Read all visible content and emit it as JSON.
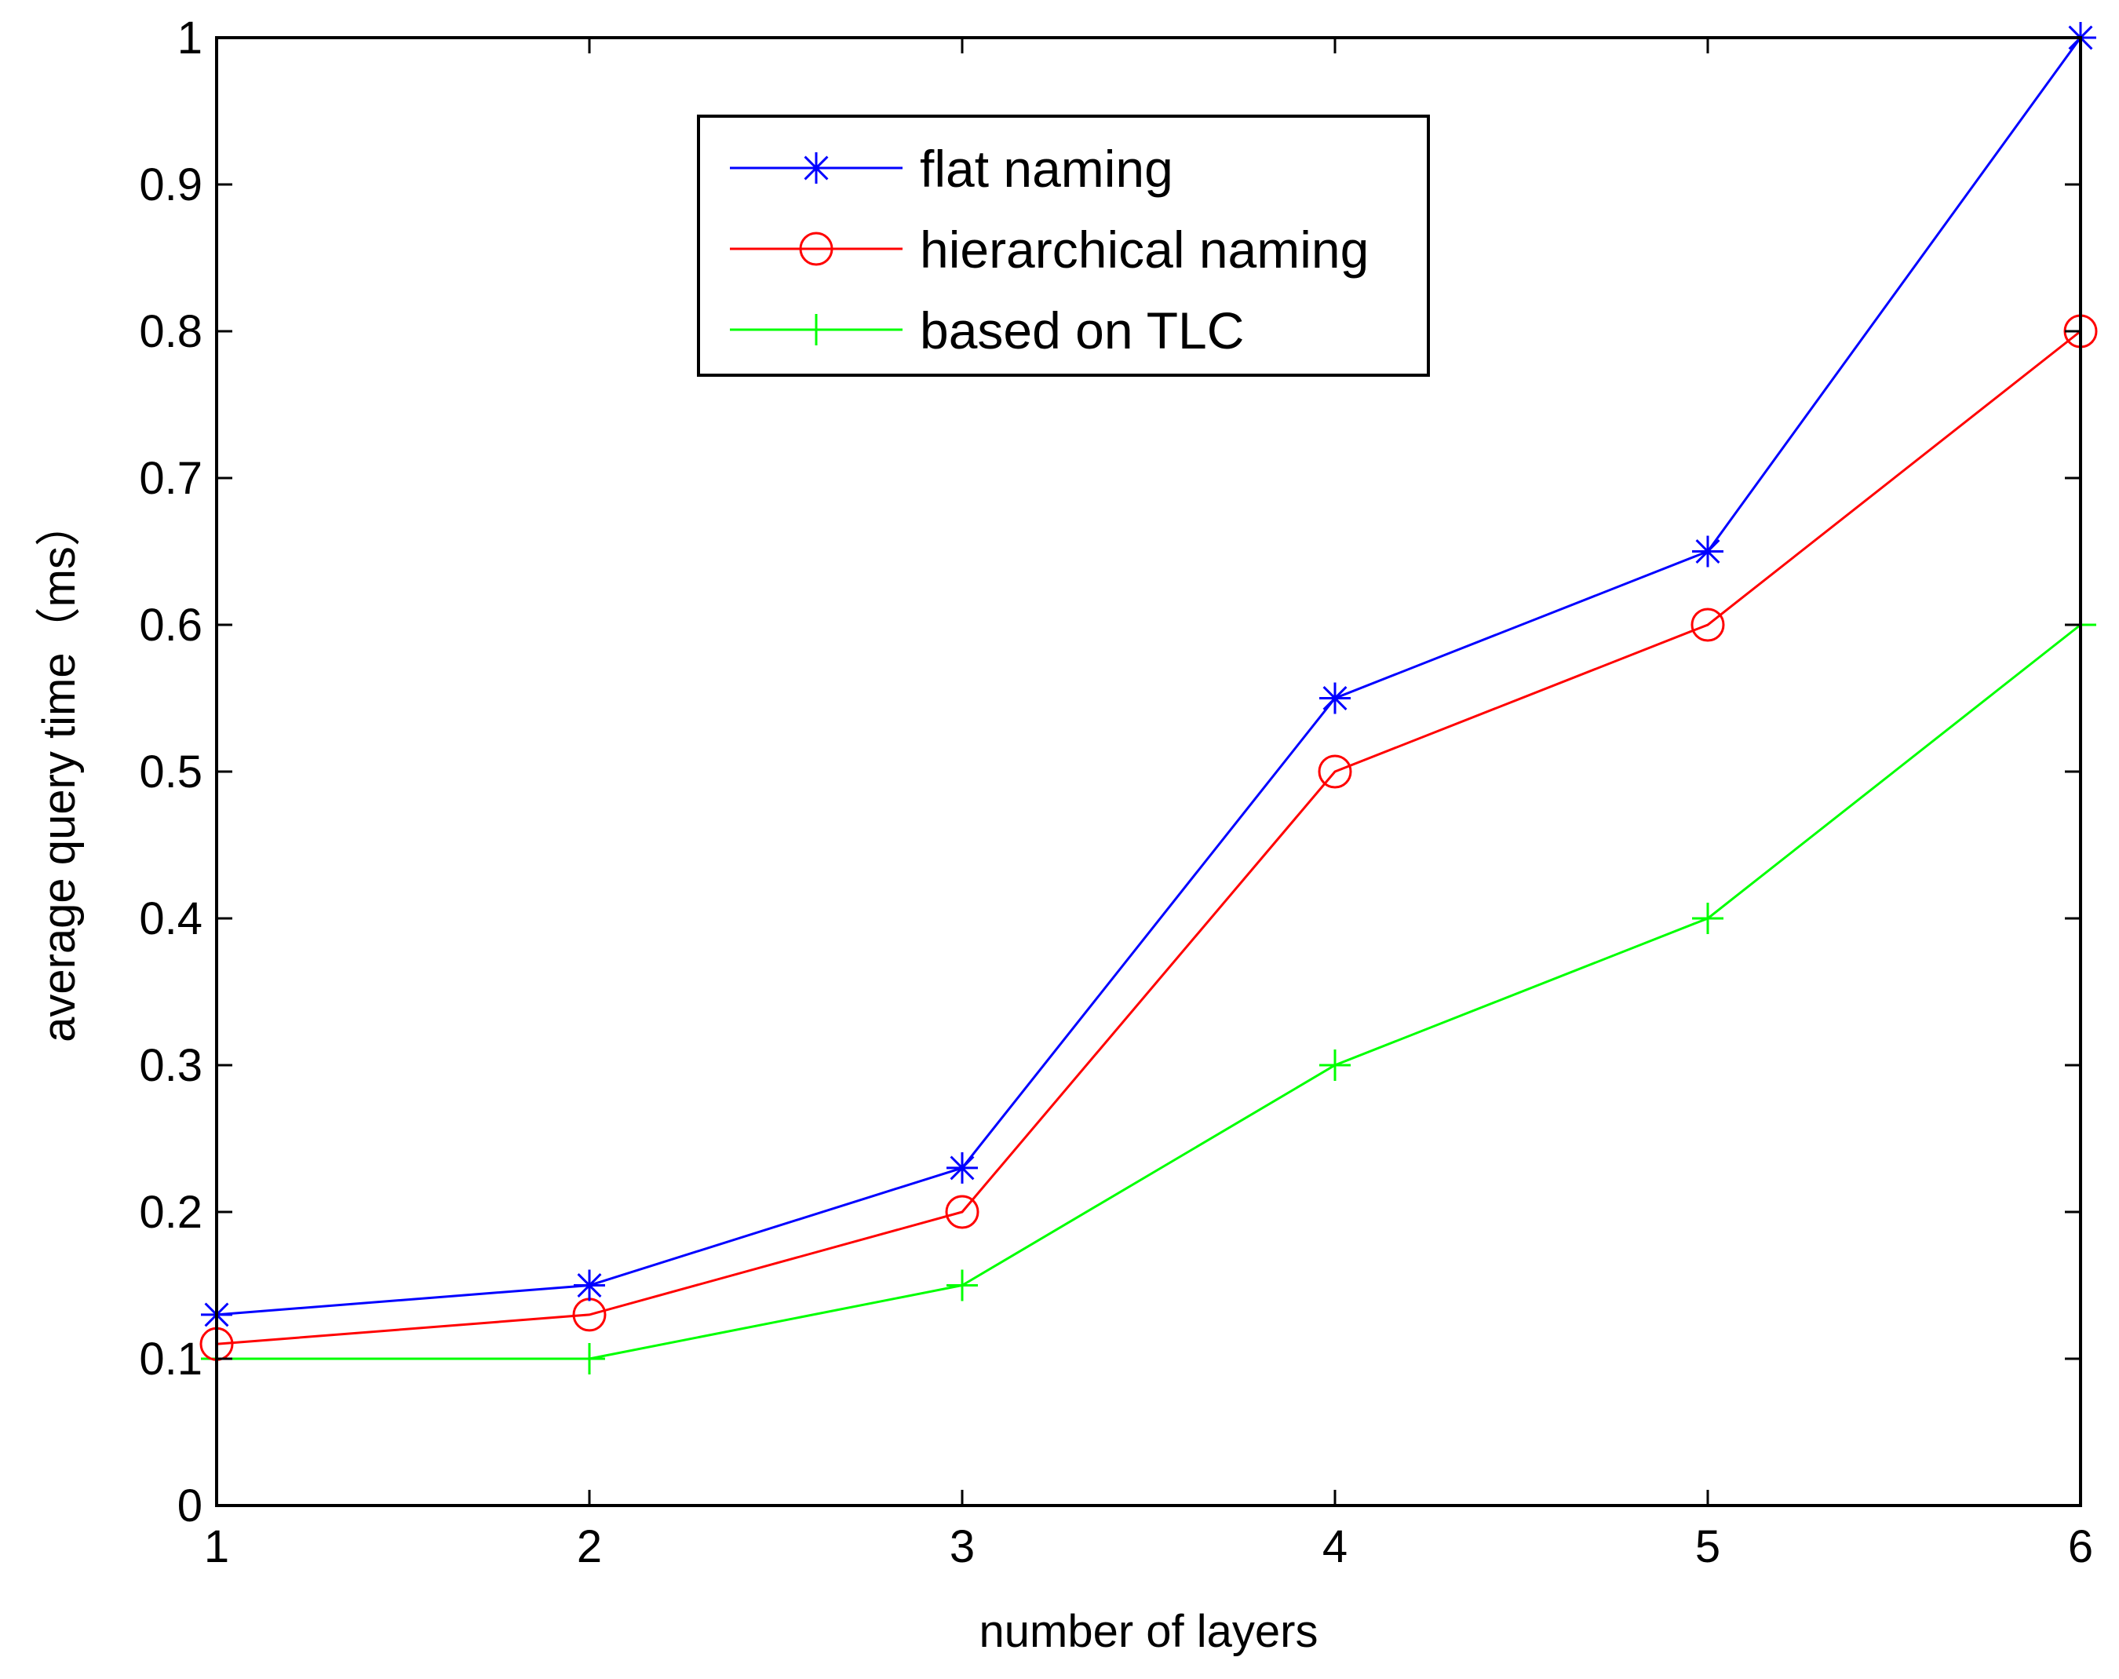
{
  "chart_data": {
    "type": "line",
    "title": "",
    "xlabel": "number of layers",
    "ylabel": "average query time（ms）",
    "x": [
      1,
      2,
      3,
      4,
      5,
      6
    ],
    "xlim": [
      1,
      6
    ],
    "ylim": [
      0,
      1
    ],
    "xticks": [
      "1",
      "2",
      "3",
      "4",
      "5",
      "6"
    ],
    "yticks": [
      "0",
      "0.1",
      "0.2",
      "0.3",
      "0.4",
      "0.5",
      "0.6",
      "0.7",
      "0.8",
      "0.9",
      "1"
    ],
    "grid": false,
    "legend_position": "top-center",
    "series": [
      {
        "name": "flat naming",
        "color": "#0000ff",
        "marker": "asterisk",
        "values": [
          0.13,
          0.15,
          0.23,
          0.55,
          0.65,
          1.0
        ]
      },
      {
        "name": "hierarchical naming",
        "color": "#ff0000",
        "marker": "circle",
        "values": [
          0.11,
          0.13,
          0.2,
          0.5,
          0.6,
          0.8
        ]
      },
      {
        "name": "based on TLC",
        "color": "#00ff00",
        "marker": "plus",
        "values": [
          0.1,
          0.1,
          0.15,
          0.3,
          0.4,
          0.6
        ]
      }
    ]
  }
}
